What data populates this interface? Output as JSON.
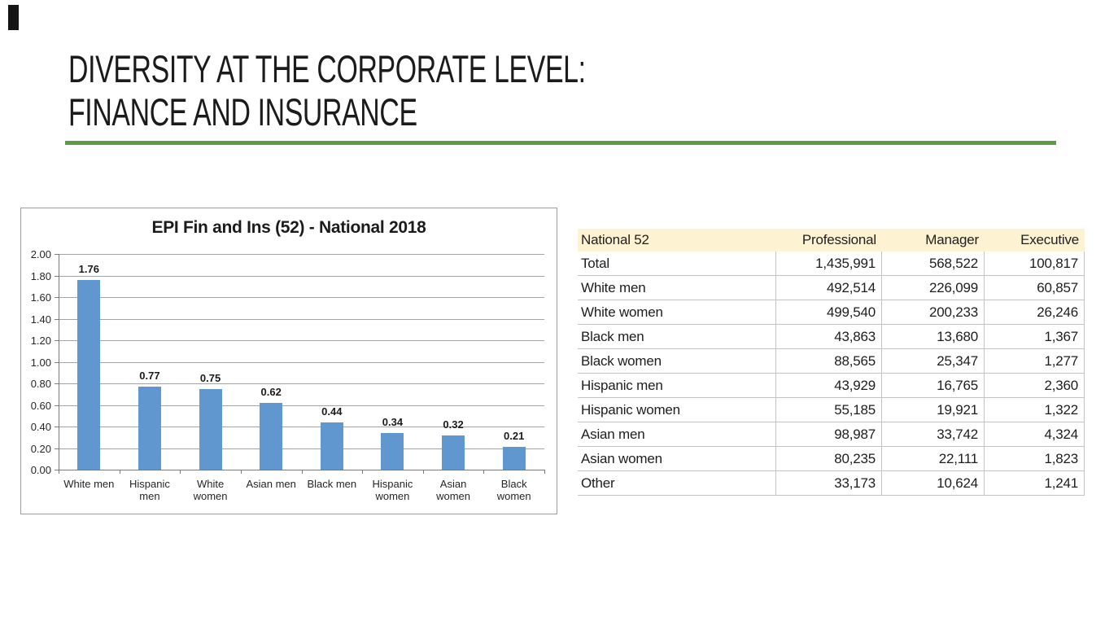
{
  "slide": {
    "title_line1": "DIVERSITY AT THE CORPORATE LEVEL:",
    "title_line2": "FINANCE AND INSURANCE",
    "accent_green": "#5d9b4a"
  },
  "chart_data": {
    "type": "bar",
    "title": "EPI Fin and Ins (52) - National 2018",
    "categories": [
      "White men",
      "Hispanic men",
      "White women",
      "Asian men",
      "Black men",
      "Hispanic women",
      "Asian women",
      "Black women"
    ],
    "category_label_lines": [
      [
        "White men"
      ],
      [
        "Hispanic",
        "men"
      ],
      [
        "White",
        "women"
      ],
      [
        "Asian men"
      ],
      [
        "Black men"
      ],
      [
        "Hispanic",
        "women"
      ],
      [
        "Asian",
        "women"
      ],
      [
        "Black",
        "women"
      ]
    ],
    "values": [
      1.76,
      0.77,
      0.75,
      0.62,
      0.44,
      0.34,
      0.32,
      0.21
    ],
    "value_labels": [
      "1.76",
      "0.77",
      "0.75",
      "0.62",
      "0.44",
      "0.34",
      "0.32",
      "0.21"
    ],
    "xlabel": "",
    "ylabel": "",
    "ylim": [
      0,
      2
    ],
    "ytick_labels": [
      "0.00",
      "0.20",
      "0.40",
      "0.60",
      "0.80",
      "1.00",
      "1.20",
      "1.40",
      "1.60",
      "1.80",
      "2.00"
    ],
    "grid": true,
    "legend": false,
    "bar_color": "#6197cf"
  },
  "table": {
    "header": [
      "National 52",
      "Professional",
      "Manager",
      "Executive"
    ],
    "header_bg": "#fdf2d2",
    "rows": [
      [
        "Total",
        "1,435,991",
        "568,522",
        "100,817"
      ],
      [
        "White men",
        "492,514",
        "226,099",
        "60,857"
      ],
      [
        "White women",
        "499,540",
        "200,233",
        "26,246"
      ],
      [
        "Black men",
        "43,863",
        "13,680",
        "1,367"
      ],
      [
        "Black women",
        "88,565",
        "25,347",
        "1,277"
      ],
      [
        "Hispanic men",
        "43,929",
        "16,765",
        "2,360"
      ],
      [
        "Hispanic women",
        "55,185",
        "19,921",
        "1,322"
      ],
      [
        "Asian men",
        "98,987",
        "33,742",
        "4,324"
      ],
      [
        "Asian women",
        "80,235",
        "22,111",
        "1,823"
      ],
      [
        "Other",
        "33,173",
        "10,624",
        "1,241"
      ]
    ]
  }
}
